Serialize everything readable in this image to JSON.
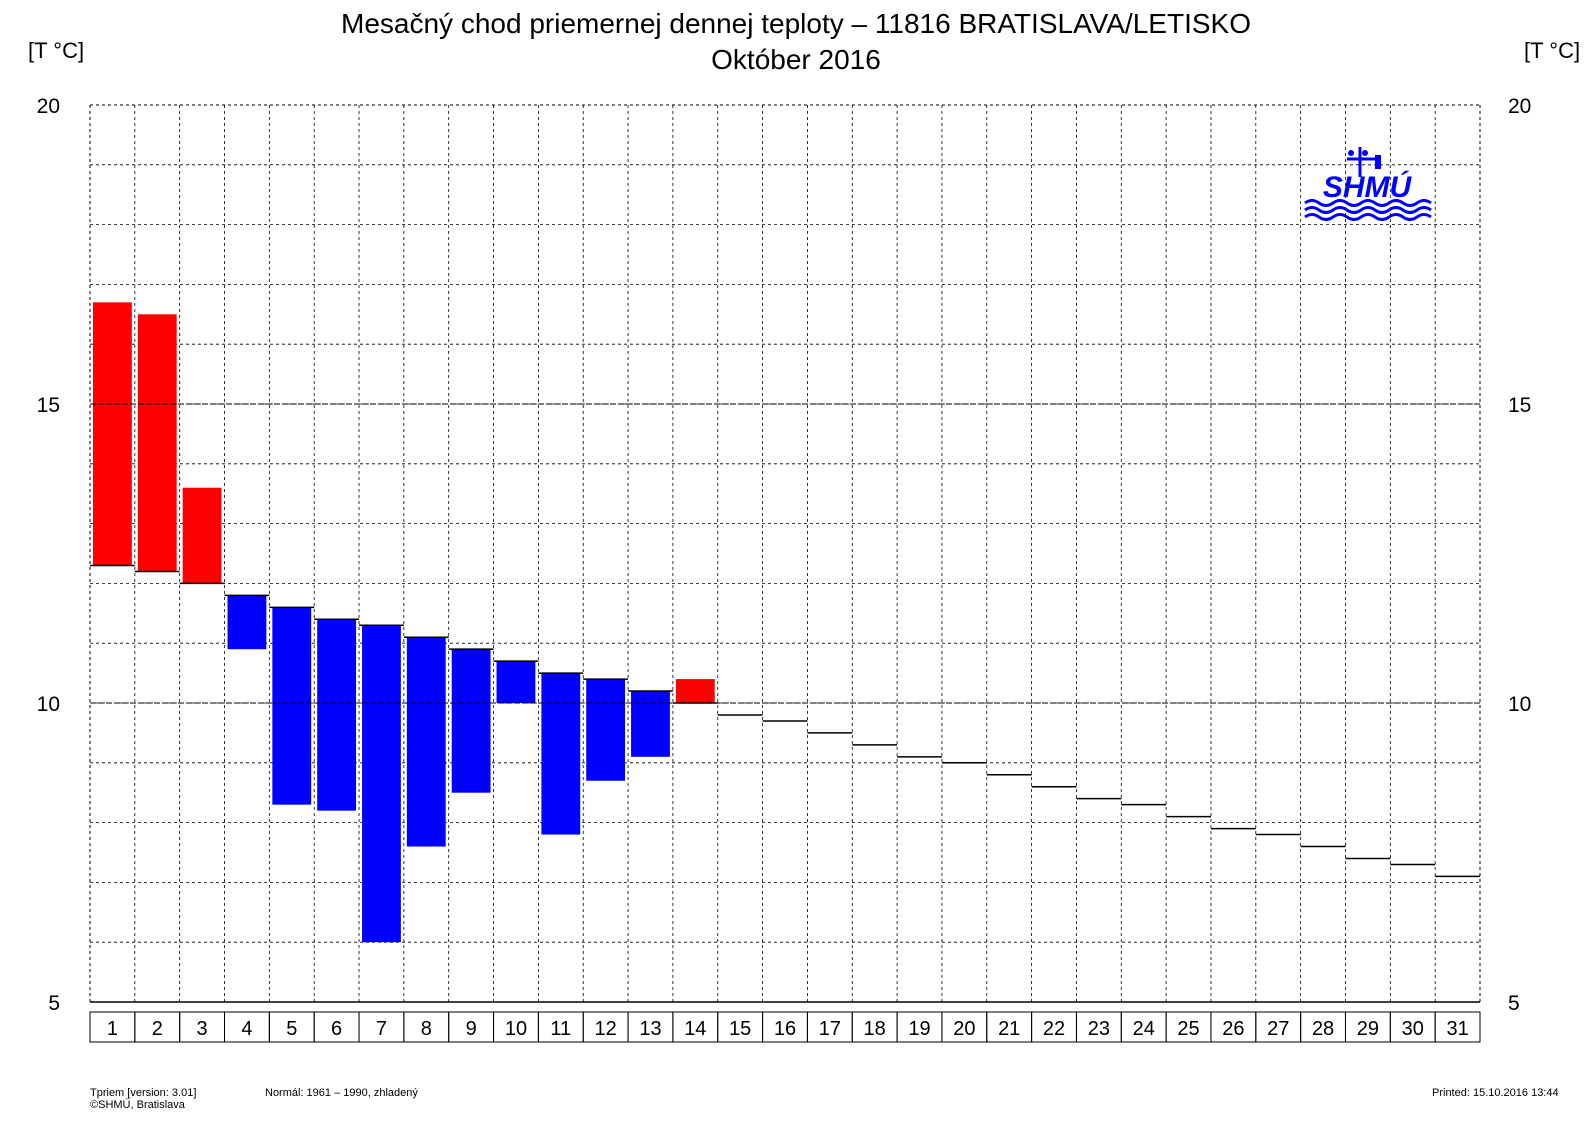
{
  "chart_data": {
    "type": "bar",
    "title": "Mesačný chod priemernej dennej teploty – 11816 BRATISLAVA/LETISKO",
    "subtitle": "Október 2016",
    "ylabel_left": "[T °C]",
    "ylabel_right": "[T °C]",
    "ylim": [
      5,
      20
    ],
    "yticks": [
      5,
      10,
      15,
      20
    ],
    "grid": true,
    "categories": [
      "1",
      "2",
      "3",
      "4",
      "5",
      "6",
      "7",
      "8",
      "9",
      "10",
      "11",
      "12",
      "13",
      "14",
      "15",
      "16",
      "17",
      "18",
      "19",
      "20",
      "21",
      "22",
      "23",
      "24",
      "25",
      "26",
      "27",
      "28",
      "29",
      "30",
      "31"
    ],
    "series": [
      {
        "values": [
          16.7,
          16.5,
          13.6,
          10.9,
          8.3,
          8.2,
          6.0,
          7.6,
          8.5,
          10.0,
          7.8,
          8.7,
          9.1,
          10.4,
          null,
          null,
          null,
          null,
          null,
          null,
          null,
          null,
          null,
          null,
          null,
          null,
          null,
          null,
          null,
          null,
          null
        ]
      },
      {
        "values": [
          12.3,
          12.2,
          12.0,
          11.8,
          11.6,
          11.4,
          11.3,
          11.1,
          10.9,
          10.7,
          10.5,
          10.4,
          10.2,
          10.0,
          9.8,
          9.7,
          9.5,
          9.3,
          9.1,
          9.0,
          8.8,
          8.6,
          8.4,
          8.3,
          8.1,
          7.9,
          7.8,
          7.6,
          7.4,
          7.3,
          7.1
        ]
      }
    ],
    "colors": {
      "above": "#ff0000",
      "below": "#0000ff",
      "line": "#000000"
    }
  },
  "logo": {
    "text": "SHMÚ"
  },
  "footer": {
    "left_line1": "Tpriem [version: 3.01]",
    "left_line2": "©SHMÚ, Bratislava",
    "normal": "Normál: 1961 – 1990, zhladený",
    "printed": "Printed: 15.10.2016  13:44"
  }
}
